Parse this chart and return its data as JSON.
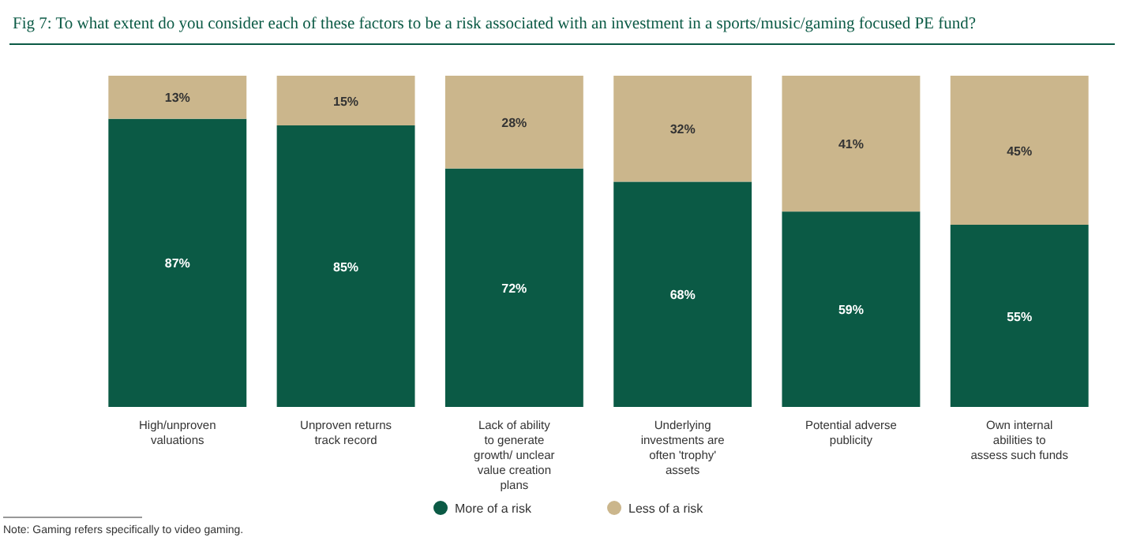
{
  "chart_data": {
    "type": "bar",
    "title": "Fig 7: To what extent do you consider each of these factors to be a risk associated with an investment in a sports/music/gaming focused PE fund?",
    "categories": [
      "High/unproven valuations",
      "Unproven returns track record",
      "Lack of ability to generate growth/ unclear value creation plans",
      "Underlying investments are often 'trophy' assets",
      "Potential adverse publicity",
      "Own internal abilities to assess such funds"
    ],
    "stacked": true,
    "legend": "bottom",
    "series": [
      {
        "name": "More of a risk",
        "color": "#0b5a45",
        "values": [
          87,
          85,
          72,
          68,
          59,
          55
        ],
        "value_labels": [
          "87%",
          "85%",
          "72%",
          "68%",
          "59%",
          "55%"
        ]
      },
      {
        "name": "Less of a risk",
        "color": "#cbb68c",
        "values": [
          13,
          15,
          28,
          32,
          41,
          45
        ],
        "value_labels": [
          "13%",
          "15%",
          "28%",
          "32%",
          "41%",
          "45%"
        ]
      }
    ],
    "annotations": [
      "Note: Gaming refers specifically to video gaming."
    ]
  }
}
